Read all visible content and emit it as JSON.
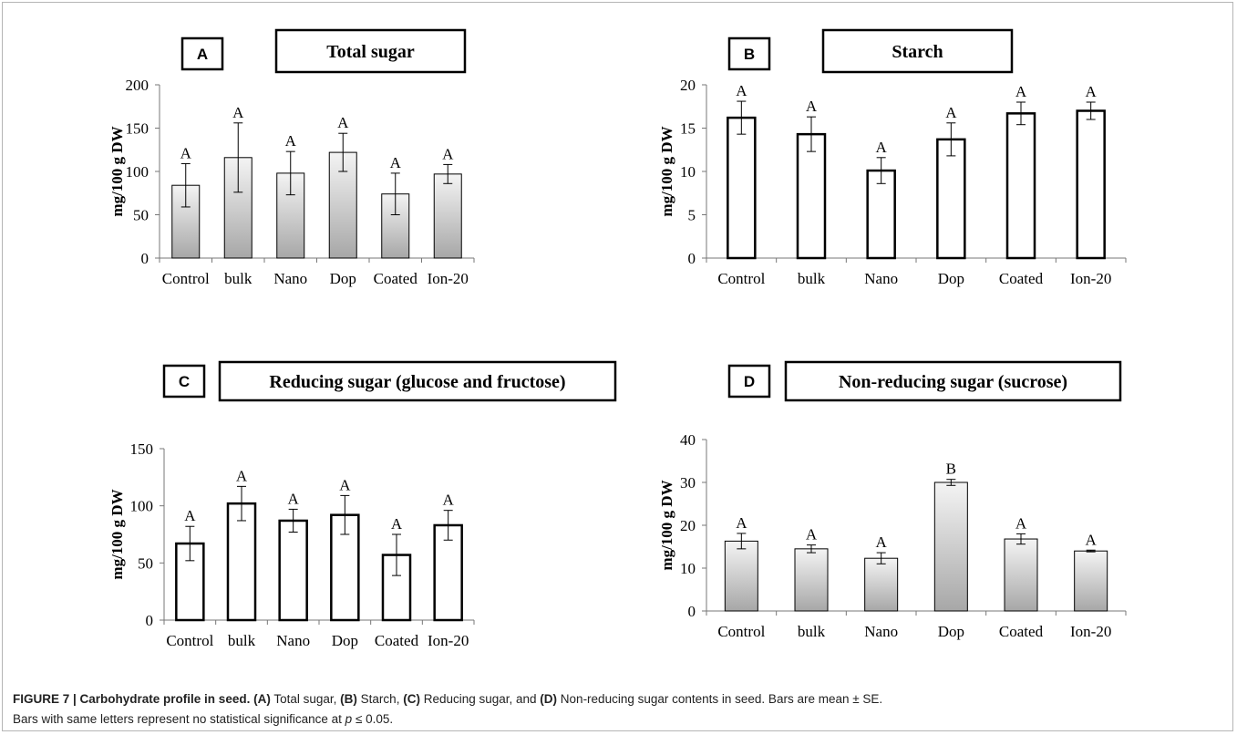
{
  "caption": {
    "figure": "FIGURE 7 | Carbohydrate profile in seed.",
    "parts": [
      {
        "label": "(A)",
        "text": " Total sugar, "
      },
      {
        "label": "(B)",
        "text": " Starch, "
      },
      {
        "label": "(C)",
        "text": " Reducing sugar, and "
      },
      {
        "label": "(D)",
        "text": " Non-reducing sugar contents in seed. Bars are mean ± SE."
      }
    ],
    "line2_pre": "Bars with same letters represent no statistical significance at ",
    "line2_italic": "p",
    "line2_post": " ≤ 0.05."
  },
  "chart_data": [
    {
      "panel": "A",
      "type": "bar",
      "title": "Total sugar",
      "ylabel": "mg/100 g DW",
      "xlabel": "",
      "categories": [
        "Control",
        "bulk",
        "Nano",
        "Dop",
        "Coated",
        "Ion-20"
      ],
      "values": [
        84,
        116,
        98,
        122,
        74,
        97
      ],
      "errors": [
        25,
        40,
        25,
        22,
        24,
        11
      ],
      "letters": [
        "A",
        "A",
        "A",
        "A",
        "A",
        "A"
      ],
      "ylim": [
        0,
        200
      ],
      "yticks": [
        0,
        50,
        100,
        150,
        200
      ],
      "fill": "gradient"
    },
    {
      "panel": "B",
      "type": "bar",
      "title": "Starch",
      "ylabel": "mg/100 g DW",
      "xlabel": "",
      "categories": [
        "Control",
        "bulk",
        "Nano",
        "Dop",
        "Coated",
        "Ion-20"
      ],
      "values": [
        16.2,
        14.3,
        10.1,
        13.7,
        16.7,
        17.0
      ],
      "errors": [
        1.9,
        2.0,
        1.5,
        1.9,
        1.3,
        1.0
      ],
      "letters": [
        "A",
        "A",
        "A",
        "A",
        "A",
        "A"
      ],
      "ylim": [
        0,
        20
      ],
      "yticks": [
        0,
        5,
        10,
        15,
        20
      ],
      "fill": "white"
    },
    {
      "panel": "C",
      "type": "bar",
      "title": "Reducing sugar (glucose and fructose)",
      "ylabel": "mg/100 g DW",
      "xlabel": "",
      "categories": [
        "Control",
        "bulk",
        "Nano",
        "Dop",
        "Coated",
        "Ion-20"
      ],
      "values": [
        67,
        102,
        87,
        92,
        57,
        83
      ],
      "errors": [
        15,
        15,
        10,
        17,
        18,
        13
      ],
      "letters": [
        "A",
        "A",
        "A",
        "A",
        "A",
        "A"
      ],
      "ylim": [
        0,
        150
      ],
      "yticks": [
        0,
        50,
        100,
        150
      ],
      "fill": "white"
    },
    {
      "panel": "D",
      "type": "bar",
      "title": "Non-reducing sugar (sucrose)",
      "ylabel": "mg/100 g DW",
      "xlabel": "",
      "categories": [
        "Control",
        "bulk",
        "Nano",
        "Dop",
        "Coated",
        "Ion-20"
      ],
      "values": [
        16.3,
        14.5,
        12.3,
        30.0,
        16.8,
        14.0
      ],
      "errors": [
        1.8,
        0.9,
        1.3,
        0.7,
        1.2,
        0.2
      ],
      "letters": [
        "A",
        "A",
        "A",
        "B",
        "A",
        "A"
      ],
      "ylim": [
        0,
        40
      ],
      "yticks": [
        0,
        10,
        20,
        30,
        40
      ],
      "fill": "gradient"
    }
  ]
}
